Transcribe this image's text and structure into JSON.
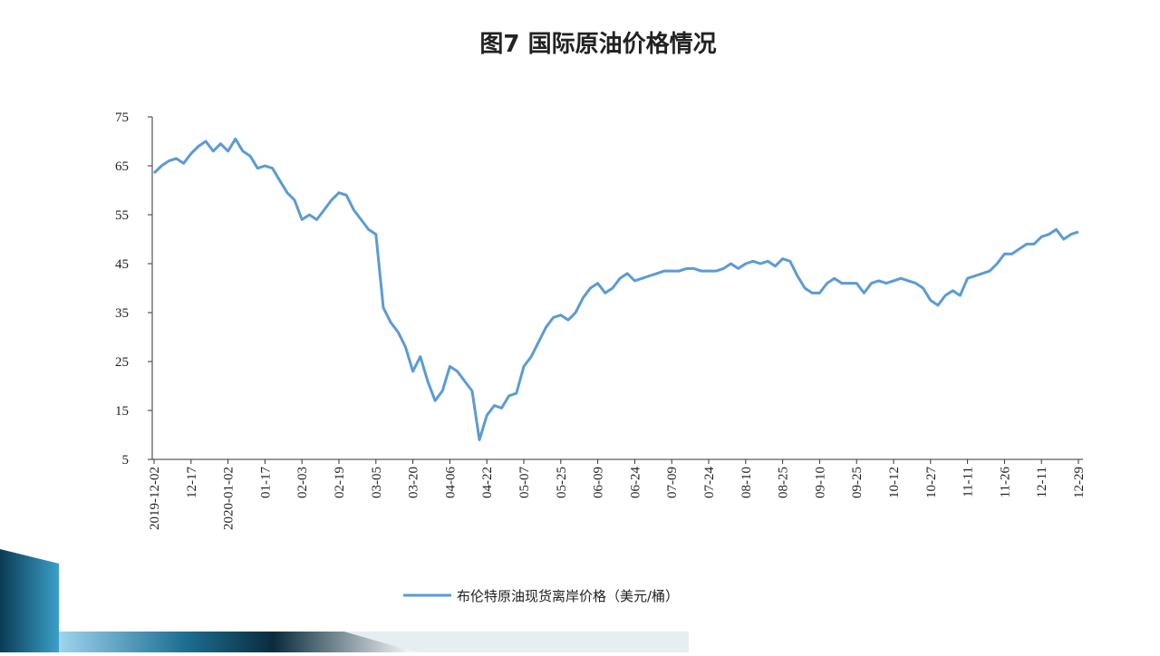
{
  "chart_data": {
    "type": "line",
    "title": "图7  国际原油价格情况",
    "categories": [
      "2019-12-02",
      null,
      null,
      null,
      null,
      "12-17",
      null,
      null,
      null,
      null,
      "2020-01-02",
      null,
      null,
      null,
      null,
      "01-17",
      null,
      null,
      null,
      null,
      "02-03",
      null,
      null,
      null,
      null,
      "02-19",
      null,
      null,
      null,
      null,
      "03-05",
      null,
      null,
      null,
      null,
      "03-20",
      null,
      null,
      null,
      null,
      "04-06",
      null,
      null,
      null,
      null,
      "04-22",
      null,
      null,
      null,
      null,
      "05-07",
      null,
      null,
      null,
      null,
      "05-25",
      null,
      null,
      null,
      null,
      "06-09",
      null,
      null,
      null,
      null,
      "06-24",
      null,
      null,
      null,
      null,
      "07-09",
      null,
      null,
      null,
      null,
      "07-24",
      null,
      null,
      null,
      null,
      "08-10",
      null,
      null,
      null,
      null,
      "08-25",
      null,
      null,
      null,
      null,
      "09-10",
      null,
      null,
      null,
      null,
      "09-25",
      null,
      null,
      null,
      null,
      "10-12",
      null,
      null,
      null,
      null,
      "10-27",
      null,
      null,
      null,
      null,
      "11-11",
      null,
      null,
      null,
      null,
      "11-26",
      null,
      null,
      null,
      null,
      "12-11",
      null,
      null,
      null,
      null,
      "12-29"
    ],
    "series": [
      {
        "name": "布伦特原油现货离岸价格（美元/桶）",
        "color": "#5b9bd5",
        "values": [
          63.5,
          65,
          66,
          66.5,
          65.5,
          67.5,
          69,
          70,
          68,
          69.5,
          68,
          70.5,
          68,
          67,
          64.5,
          65,
          64.5,
          62,
          59.5,
          58,
          54,
          55,
          54,
          56,
          58,
          59.5,
          59,
          56,
          54,
          52,
          51,
          36,
          33,
          31,
          28,
          23,
          26,
          21,
          17,
          19,
          24,
          23,
          21,
          19,
          9,
          14,
          16,
          15.5,
          18,
          18.5,
          24,
          26,
          29,
          32,
          34,
          34.5,
          33.5,
          35,
          38,
          40,
          41,
          39,
          40,
          42,
          43,
          41.5,
          42,
          42.5,
          43,
          43.5,
          43.5,
          43.5,
          44,
          44,
          43.5,
          43.5,
          43.5,
          44,
          45,
          44,
          45,
          45.5,
          45,
          45.5,
          44.5,
          46,
          45.5,
          42.5,
          40,
          39,
          39,
          41,
          42,
          41,
          41,
          41,
          39,
          41,
          41.5,
          41,
          41.5,
          42,
          41.5,
          41,
          40,
          37.5,
          36.5,
          38.5,
          39.5,
          38.5,
          42,
          42.5,
          43,
          43.5,
          45,
          47,
          47,
          48,
          49,
          49,
          50.5,
          51,
          52,
          50,
          51,
          51.5
        ]
      }
    ],
    "ylim": [
      5,
      75
    ],
    "yticks": [
      5,
      15,
      25,
      35,
      45,
      55,
      65,
      75
    ]
  }
}
